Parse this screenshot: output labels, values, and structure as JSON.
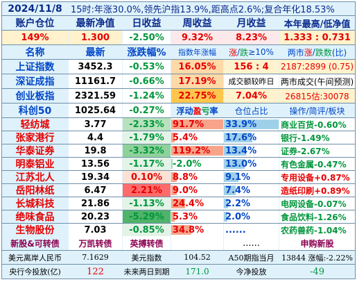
{
  "header": {
    "date": "2024/11/8",
    "summary": "15时:年涨30.0%,领先沪指13.9%,距高点2.6%;复合年化18.53%"
  },
  "account": {
    "headers": [
      "账户仓位",
      "最新净值",
      "日收益",
      "周收益",
      "月收益",
      "本年最高/低净值"
    ],
    "values": [
      "149%",
      "1.300",
      "-2.50%",
      "9.32%",
      "8.23%",
      "1.333 : 0.731"
    ]
  },
  "index_header": [
    "名称",
    "最新",
    "涨跌幅%",
    "指数年涨幅",
    "涨/跌≥10%",
    "两市涨/跌数(比)"
  ],
  "index_header_parts": {
    "up": "涨",
    "slash": "/",
    "down": "跌",
    "rest": "≥10%",
    "pre": "两市",
    "up2": "涨",
    "slash2": "/",
    "down2": "跌数",
    "post": "(比)"
  },
  "indices": [
    {
      "name": "上证指数",
      "price": "3452.3",
      "chg": "-0.53%",
      "c4": "16.05%",
      "c5": "156 : 4",
      "c6": "2187:2899 (0.75)"
    },
    {
      "name": "深证成指",
      "price": "11161.7",
      "chg": "-0.66%",
      "c4": "17.19%",
      "c5": "成交额较昨日",
      "c6": "两市成交(午间预测)"
    },
    {
      "name": "创业板指",
      "price": "2321.59",
      "chg": "-1.24%",
      "c4": "22.75%",
      "c5": "7.04%",
      "c6": "26815估:30078"
    }
  ],
  "hold_header": {
    "name": "科创50",
    "price": "1025.64",
    "chg": "-0.27%",
    "float_a": "浮动",
    "float_b": "盈",
    "float_c": "亏",
    "float_d": "率",
    "pos": "仓位占比",
    "ops": "操作/简评/板块"
  },
  "holdings": [
    {
      "name": "轻纺城",
      "price": "3.77",
      "chg": "-2.33%",
      "pnl": "91.7%",
      "pnl_frac": 1.0,
      "pos": "33.9%",
      "pos_frac": 1.0,
      "sector": "商业百货-0.60%"
    },
    {
      "name": "张家港行",
      "price": "4.4",
      "chg": "-1.79%",
      "pnl": "5.4%",
      "pnl_frac": 0.06,
      "pos": "17.6%",
      "pos_frac": 0.52,
      "sector": "银行-1.49%"
    },
    {
      "name": "华泰证券",
      "price": "19.8",
      "chg": "-3.32%",
      "pnl": "119.2%",
      "pnl_frac": 1.0,
      "pos": "13.4%",
      "pos_frac": 0.4,
      "sector": "证券-2.67%"
    },
    {
      "name": "明泰铝业",
      "price": "13.56",
      "chg": "-1.17%",
      "pnl": "-2.0%",
      "pnl_frac": 0.02,
      "pos": "13.0%",
      "pos_frac": 0.38,
      "sector": "有色金属-0.47%"
    },
    {
      "name": "江苏北人",
      "price": "19.34",
      "chg": "0.10%",
      "pnl": "8.8%",
      "pnl_frac": 0.1,
      "pos": "9.1%",
      "pos_frac": 0.27,
      "sector": "专用设备+0.87%"
    },
    {
      "name": "岳阳林纸",
      "price": "6.47",
      "chg": "2.21%",
      "pnl": "9.0%",
      "pnl_frac": 0.1,
      "pos": "7.4%",
      "pos_frac": 0.22,
      "sector": "造纸印刷+0.89%"
    },
    {
      "name": "长城科技",
      "price": "21.86",
      "chg": "-1.13%",
      "pnl": "24.4%",
      "pnl_frac": 0.27,
      "pos": "2.2%",
      "pos_frac": 0.07,
      "sector": "电网设备-0.07%"
    },
    {
      "name": "绝味食品",
      "price": "20.23",
      "chg": "-5.29%",
      "pnl": "5.3%",
      "pnl_frac": 0.06,
      "pos": "2.0%",
      "pos_frac": 0.06,
      "sector": "食品饮料-1.26%"
    },
    {
      "name": "生物股份",
      "price": "7.03",
      "chg": "-0.85%",
      "pnl": "34.8%",
      "pnl_frac": 0.38,
      "pos": "......",
      "pos_frac": 0,
      "sector": "农药兽药-1.04%"
    }
  ],
  "new_row": {
    "label": "新股&可转债",
    "b1": "万凯转债",
    "b2": "英搏转债",
    "dots": "......",
    "apply": "申购新股"
  },
  "footer1": {
    "l1": "美元离岸人民币",
    "v1": "7.1629",
    "l2": "美元指数",
    "v2": "104.52",
    "l3": "A50期指当月",
    "v3": "13844 涨幅:-2.22%"
  },
  "footer2": {
    "l1": "央行今投放(亿)",
    "v1": "122",
    "l2": "未来两日到期",
    "v2": "171.0",
    "l3": "今净投放",
    "v3": "-49"
  },
  "colors": {
    "up": "#e60000",
    "down": "#00963c",
    "accent": "#0046c8"
  }
}
